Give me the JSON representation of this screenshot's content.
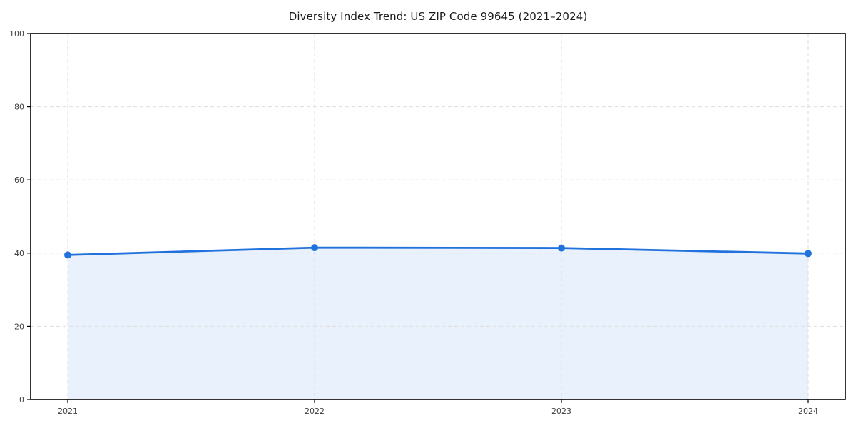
{
  "chart_data": {
    "type": "area",
    "title": "Diversity Index Trend: US ZIP Code 99645 (2021–2024)",
    "categories": [
      "2021",
      "2022",
      "2023",
      "2024"
    ],
    "series": [
      {
        "name": "Diversity Index",
        "values": [
          39.5,
          41.5,
          41.4,
          39.9
        ]
      }
    ],
    "xlabel": "",
    "ylabel": "",
    "ylim": [
      0,
      100
    ],
    "yticks": [
      0,
      20,
      40,
      60,
      80,
      100
    ],
    "grid": true,
    "grid_style": "dashed",
    "legend": false,
    "colors": {
      "line": "#2272dd",
      "marker": "#2272dd",
      "fill": "#e8f1fc",
      "grid": "#dedede",
      "axis": "#000000",
      "tick_label": "#3d3d3d",
      "title": "#1a1a1a",
      "background": "#ffffff"
    }
  }
}
